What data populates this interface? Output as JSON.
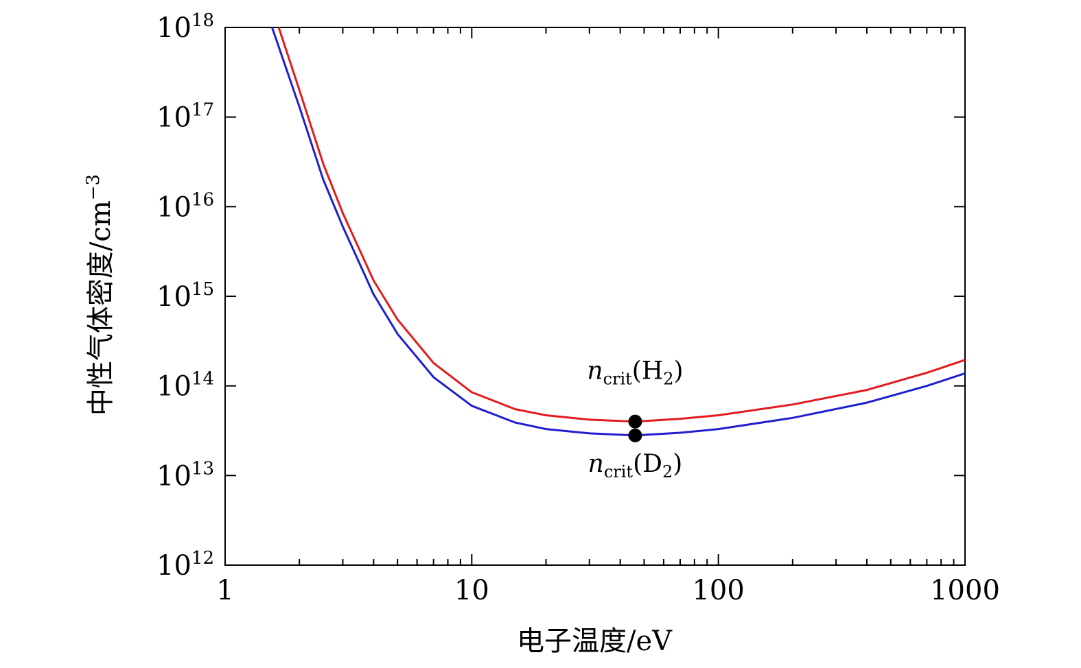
{
  "chart_data": {
    "type": "line",
    "xlabel": "电子温度/eV",
    "ylabel": "中性气体密度/cm",
    "ylabel_exponent": "−3",
    "x_scale": "log",
    "y_scale": "log",
    "xlim": [
      1,
      1000
    ],
    "ylim": [
      1000000000000.0,
      1e+18
    ],
    "grid": false,
    "x_ticks": [
      {
        "value": 1,
        "label": "1"
      },
      {
        "value": 10,
        "label": "10"
      },
      {
        "value": 100,
        "label": "100"
      },
      {
        "value": 1000,
        "label": "1000"
      }
    ],
    "y_ticks": [
      {
        "value": 1000000000000.0,
        "base": "10",
        "exp": "12"
      },
      {
        "value": 10000000000000.0,
        "base": "10",
        "exp": "13"
      },
      {
        "value": 100000000000000.0,
        "base": "10",
        "exp": "14"
      },
      {
        "value": 1000000000000000.0,
        "base": "10",
        "exp": "15"
      },
      {
        "value": 1e+16,
        "base": "10",
        "exp": "16"
      },
      {
        "value": 1e+17,
        "base": "10",
        "exp": "17"
      },
      {
        "value": 1e+18,
        "base": "10",
        "exp": "18"
      }
    ],
    "series": [
      {
        "color": "#e41a1c",
        "x": [
          1.65,
          2,
          2.5,
          3,
          4,
          5,
          7,
          10,
          15,
          20,
          30,
          46,
          70,
          100,
          200,
          400,
          700,
          1000
        ],
        "y": [
          1e+18,
          2e+17,
          3e+16,
          8500000000000000.0,
          1500000000000000.0,
          550000000000000.0,
          180000000000000.0,
          85000000000000.0,
          55000000000000.0,
          47000000000000.0,
          42000000000000.0,
          40000000000000.0,
          43000000000000.0,
          47000000000000.0,
          62000000000000.0,
          90000000000000.0,
          140000000000000.0,
          195000000000000.0
        ]
      },
      {
        "color": "#1f1fd0",
        "x": [
          1.55,
          2,
          2.5,
          3,
          4,
          5,
          7,
          10,
          15,
          20,
          30,
          46,
          70,
          100,
          200,
          400,
          700,
          1000
        ],
        "y": [
          1e+18,
          1.3e+17,
          2e+16,
          6000000000000000.0,
          1050000000000000.0,
          380000000000000.0,
          125000000000000.0,
          60000000000000.0,
          39000000000000.0,
          33000000000000.0,
          29500000000000.0,
          28000000000000.0,
          30000000000000.0,
          33000000000000.0,
          44000000000000.0,
          65000000000000.0,
          100000000000000.0,
          138000000000000.0
        ]
      }
    ],
    "markers": [
      {
        "x": 46,
        "y": 40000000000000.0,
        "color": "#000000"
      },
      {
        "x": 46,
        "y": 28000000000000.0,
        "color": "#000000"
      }
    ],
    "annotations": [
      {
        "main": "n",
        "sub": "crit",
        "tail": "(H",
        "sub2": "2",
        "close": ")",
        "x": 46,
        "y": 120000000000000.0
      },
      {
        "main": "n",
        "sub": "crit",
        "tail": "(D",
        "sub2": "2",
        "close": ")",
        "x": 46,
        "y": 11000000000000.0
      }
    ]
  }
}
